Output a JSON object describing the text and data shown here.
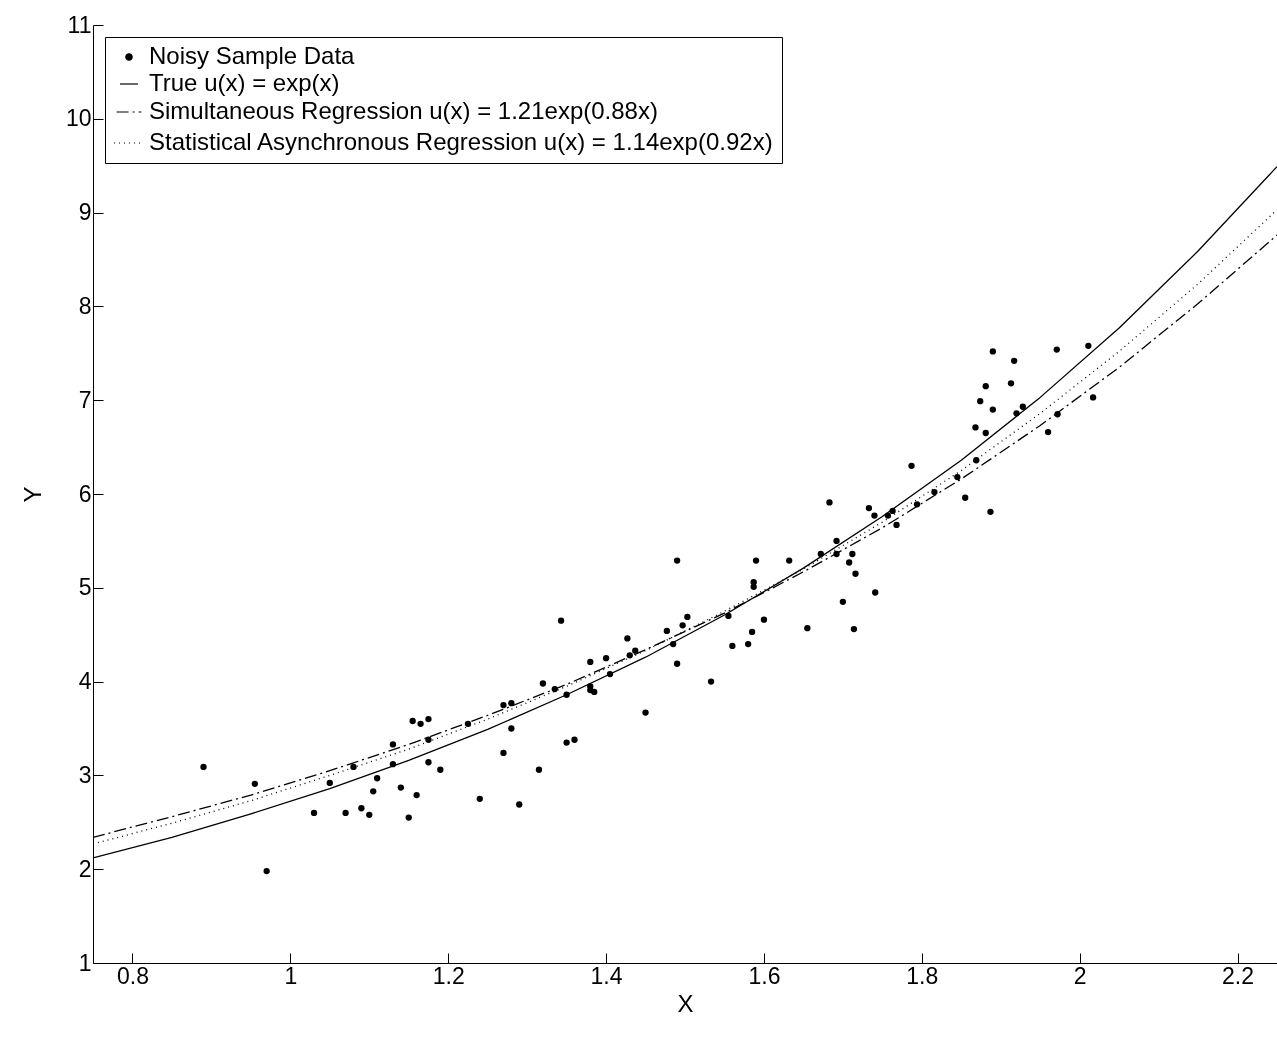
{
  "chart_data": {
    "type": "scatter",
    "xlabel": "X",
    "ylabel": "Y",
    "xlim": [
      0.75,
      2.25
    ],
    "ylim": [
      1,
      11
    ],
    "xticks": [
      0.8,
      1,
      1.2,
      1.4,
      1.6,
      1.8,
      2,
      2.2
    ],
    "yticks": [
      1,
      2,
      3,
      4,
      5,
      6,
      7,
      8,
      9,
      10,
      11
    ],
    "grid": false,
    "legend": "top left",
    "series": [
      {
        "name": "Noisy Sample Data",
        "type": "scatter",
        "marker": "circle",
        "color": "#000000",
        "x": [
          0.89,
          0.955,
          0.97,
          1.03,
          1.05,
          1.07,
          1.08,
          1.09,
          1.1,
          1.105,
          1.11,
          1.13,
          1.13,
          1.14,
          1.15,
          1.155,
          1.16,
          1.165,
          1.175,
          1.175,
          1.175,
          1.19,
          1.225,
          1.24,
          1.27,
          1.27,
          1.28,
          1.28,
          1.29,
          1.315,
          1.32,
          1.335,
          1.343,
          1.35,
          1.35,
          1.36,
          1.38,
          1.38,
          1.38,
          1.385,
          1.4,
          1.405,
          1.427,
          1.43,
          1.437,
          1.45,
          1.477,
          1.485,
          1.49,
          1.49,
          1.497,
          1.503,
          1.533,
          1.555,
          1.56,
          1.58,
          1.585,
          1.587,
          1.587,
          1.59,
          1.6,
          1.632,
          1.655,
          1.672,
          1.683,
          1.692,
          1.692,
          1.7,
          1.708,
          1.712,
          1.716,
          1.714,
          1.733,
          1.741,
          1.74,
          1.757,
          1.763,
          1.768,
          1.787,
          1.794,
          1.816,
          1.845,
          1.855,
          1.887,
          1.869,
          1.868,
          1.881,
          1.874,
          1.881,
          1.89,
          1.89,
          1.917,
          1.913,
          1.92,
          1.928,
          1.96,
          1.972,
          1.971,
          2.011,
          2.017
        ],
        "values": [
          3.09,
          2.91,
          1.98,
          2.6,
          2.92,
          2.6,
          3.09,
          2.65,
          2.58,
          2.83,
          2.97,
          3.33,
          3.12,
          2.87,
          2.55,
          3.58,
          2.79,
          3.55,
          3.6,
          3.38,
          3.14,
          3.06,
          3.55,
          2.75,
          3.24,
          3.75,
          3.77,
          3.5,
          2.69,
          3.06,
          3.98,
          3.92,
          4.65,
          3.35,
          3.86,
          3.38,
          4.21,
          3.95,
          3.91,
          3.89,
          4.25,
          4.08,
          4.46,
          4.28,
          4.33,
          3.67,
          4.54,
          4.4,
          4.19,
          5.29,
          4.6,
          4.69,
          4.0,
          4.7,
          4.38,
          4.4,
          4.53,
          5.06,
          5.01,
          5.29,
          4.66,
          5.29,
          4.57,
          5.36,
          5.91,
          5.5,
          5.36,
          4.85,
          5.27,
          5.36,
          5.15,
          4.56,
          5.85,
          4.95,
          5.77,
          5.77,
          5.82,
          5.67,
          6.3,
          5.89,
          6.02,
          6.18,
          5.96,
          5.81,
          6.36,
          6.71,
          6.65,
          6.99,
          7.15,
          6.9,
          7.52,
          7.42,
          7.18,
          6.86,
          6.93,
          6.66,
          6.85,
          7.54,
          7.58,
          7.03
        ]
      },
      {
        "name": "True u(x) = exp(x)",
        "type": "line",
        "line_style": "solid",
        "color": "#000000",
        "x": [
          0.75,
          0.85,
          0.95,
          1.05,
          1.15,
          1.25,
          1.35,
          1.45,
          1.55,
          1.65,
          1.75,
          1.85,
          1.95,
          2.05,
          2.15,
          2.25
        ],
        "values": [
          2.12,
          2.34,
          2.59,
          2.86,
          3.16,
          3.49,
          3.86,
          4.26,
          4.71,
          5.21,
          5.76,
          6.36,
          7.03,
          7.77,
          8.59,
          9.49
        ]
      },
      {
        "name": "Simultaneous Regression u(x) = 1.21exp(0.88x)",
        "type": "line",
        "line_style": "dashed",
        "color": "#000000",
        "x": [
          0.75,
          0.85,
          0.95,
          1.05,
          1.15,
          1.25,
          1.35,
          1.45,
          1.55,
          1.65,
          1.75,
          1.85,
          1.95,
          2.05,
          2.15,
          2.25
        ],
        "values": [
          2.34,
          2.56,
          2.79,
          3.05,
          3.33,
          3.64,
          3.97,
          4.34,
          4.73,
          5.17,
          5.64,
          6.16,
          6.73,
          7.35,
          8.03,
          8.76
        ]
      },
      {
        "name": "Statistical Asynchronous Regression u(x) = 1.14exp(0.92x)",
        "type": "line",
        "line_style": "dotted",
        "color": "#000000",
        "x": [
          0.75,
          0.85,
          0.95,
          1.05,
          1.15,
          1.25,
          1.35,
          1.45,
          1.55,
          1.65,
          1.75,
          1.85,
          1.95,
          2.05,
          2.15,
          2.25
        ],
        "values": [
          2.27,
          2.49,
          2.73,
          3.0,
          3.28,
          3.6,
          3.95,
          4.33,
          4.75,
          5.2,
          5.7,
          6.25,
          6.86,
          7.52,
          8.24,
          9.03
        ]
      }
    ]
  }
}
